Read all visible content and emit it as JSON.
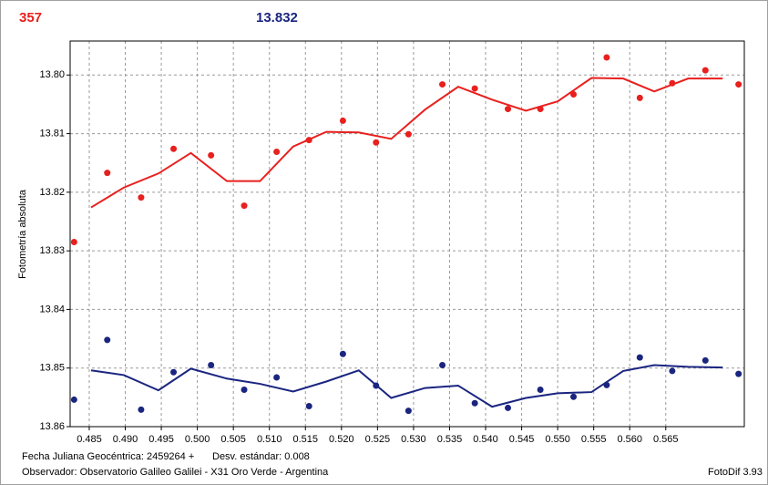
{
  "chart_data": {
    "type": "line",
    "header_count": "357",
    "header_magnitude": "13.832",
    "ylabel": "Fotometría absoluta",
    "footer_date": "Fecha Juliana Geocéntrica: 2459264 +",
    "footer_std": "Desv. estándar: 0.008",
    "footer_observer": "Observador: Observatorio Galileo Galilei - X31 Oro Verde - Argentina",
    "footer_version": "FotoDif 3.93",
    "xlim": [
      0.48235,
      0.5759
    ],
    "ylim": [
      13.86,
      13.7942
    ],
    "xticks": [
      0.485,
      {
        "value": 0.49,
        "label": "0.490"
      },
      0.495,
      {
        "value": 0.5,
        "label": "0.500"
      },
      0.505,
      {
        "value": 0.51,
        "label": "0.510"
      },
      0.515,
      {
        "value": 0.52,
        "label": "0.520"
      },
      0.525,
      {
        "value": 0.53,
        "label": "0.530"
      },
      0.535,
      {
        "value": 0.54,
        "label": "0.540"
      },
      0.545,
      {
        "value": 0.55,
        "label": "0.550"
      },
      0.555,
      {
        "value": 0.56,
        "label": "0.560"
      },
      0.565
    ],
    "yticks": [
      {
        "value": 13.8,
        "label": "13.80"
      },
      13.81,
      13.82,
      13.83,
      13.84,
      13.85,
      {
        "value": 13.86,
        "label": "13.86"
      }
    ],
    "grid": true,
    "series": [
      {
        "mode": "markers",
        "color": "#e8201e",
        "x": [
          0.4829,
          0.4875,
          0.4922,
          0.4967,
          0.5019,
          0.5065,
          0.511,
          0.5155,
          0.5202,
          0.5248,
          0.5293,
          0.534,
          0.5385,
          0.5431,
          0.5476,
          0.5522,
          0.5568,
          0.5614,
          0.5659,
          0.5705,
          0.5751
        ],
        "values": [
          13.8285,
          13.8167,
          13.8209,
          13.8126,
          13.8137,
          13.8223,
          13.8131,
          13.8111,
          13.8078,
          13.8115,
          13.8101,
          13.8016,
          13.8023,
          13.8058,
          13.8058,
          13.8033,
          13.797,
          13.8039,
          13.8014,
          13.7992,
          13.8016
        ]
      },
      {
        "mode": "lines",
        "color": "#e8201e",
        "x": [
          0.48525,
          0.4898,
          0.4946,
          0.4991,
          0.5041,
          0.5087,
          0.5133,
          0.5179,
          0.5224,
          0.5269,
          0.5316,
          0.5362,
          0.5409,
          0.5456,
          0.55,
          0.5547,
          0.5591,
          0.5634,
          0.5681,
          0.5729
        ],
        "values": [
          13.8226,
          13.8192,
          13.8168,
          13.8133,
          13.8181,
          13.8181,
          13.8122,
          13.8097,
          13.8098,
          13.8109,
          13.8059,
          13.802,
          13.8042,
          13.8061,
          13.8045,
          13.8005,
          13.8006,
          13.8028,
          13.8006,
          13.8006
        ]
      },
      {
        "mode": "markers",
        "color": "#1a2580",
        "x": [
          0.4829,
          0.4875,
          0.4922,
          0.4967,
          0.5019,
          0.5065,
          0.511,
          0.5155,
          0.5202,
          0.5248,
          0.5293,
          0.534,
          0.5385,
          0.5431,
          0.5476,
          0.5522,
          0.5568,
          0.5614,
          0.5659,
          0.5705,
          0.5751
        ],
        "values": [
          13.8554,
          13.8452,
          13.8571,
          13.8507,
          13.8495,
          13.8537,
          13.8516,
          13.8565,
          13.8476,
          13.853,
          13.8573,
          13.8495,
          13.856,
          13.8568,
          13.8537,
          13.8549,
          13.8529,
          13.8482,
          13.8505,
          13.8487,
          13.851
        ]
      },
      {
        "mode": "lines",
        "color": "#1a2580",
        "x": [
          0.48525,
          0.4898,
          0.4946,
          0.4991,
          0.5041,
          0.5087,
          0.5133,
          0.5179,
          0.5224,
          0.5269,
          0.5316,
          0.5362,
          0.5409,
          0.5456,
          0.55,
          0.5547,
          0.5591,
          0.5634,
          0.5681,
          0.5729
        ],
        "values": [
          13.8504,
          13.8512,
          13.8538,
          13.8501,
          13.8518,
          13.8527,
          13.854,
          13.8523,
          13.8504,
          13.8551,
          13.8534,
          13.853,
          13.8566,
          13.8551,
          13.8543,
          13.8541,
          13.8505,
          13.8495,
          13.8498,
          13.8499
        ]
      }
    ]
  }
}
